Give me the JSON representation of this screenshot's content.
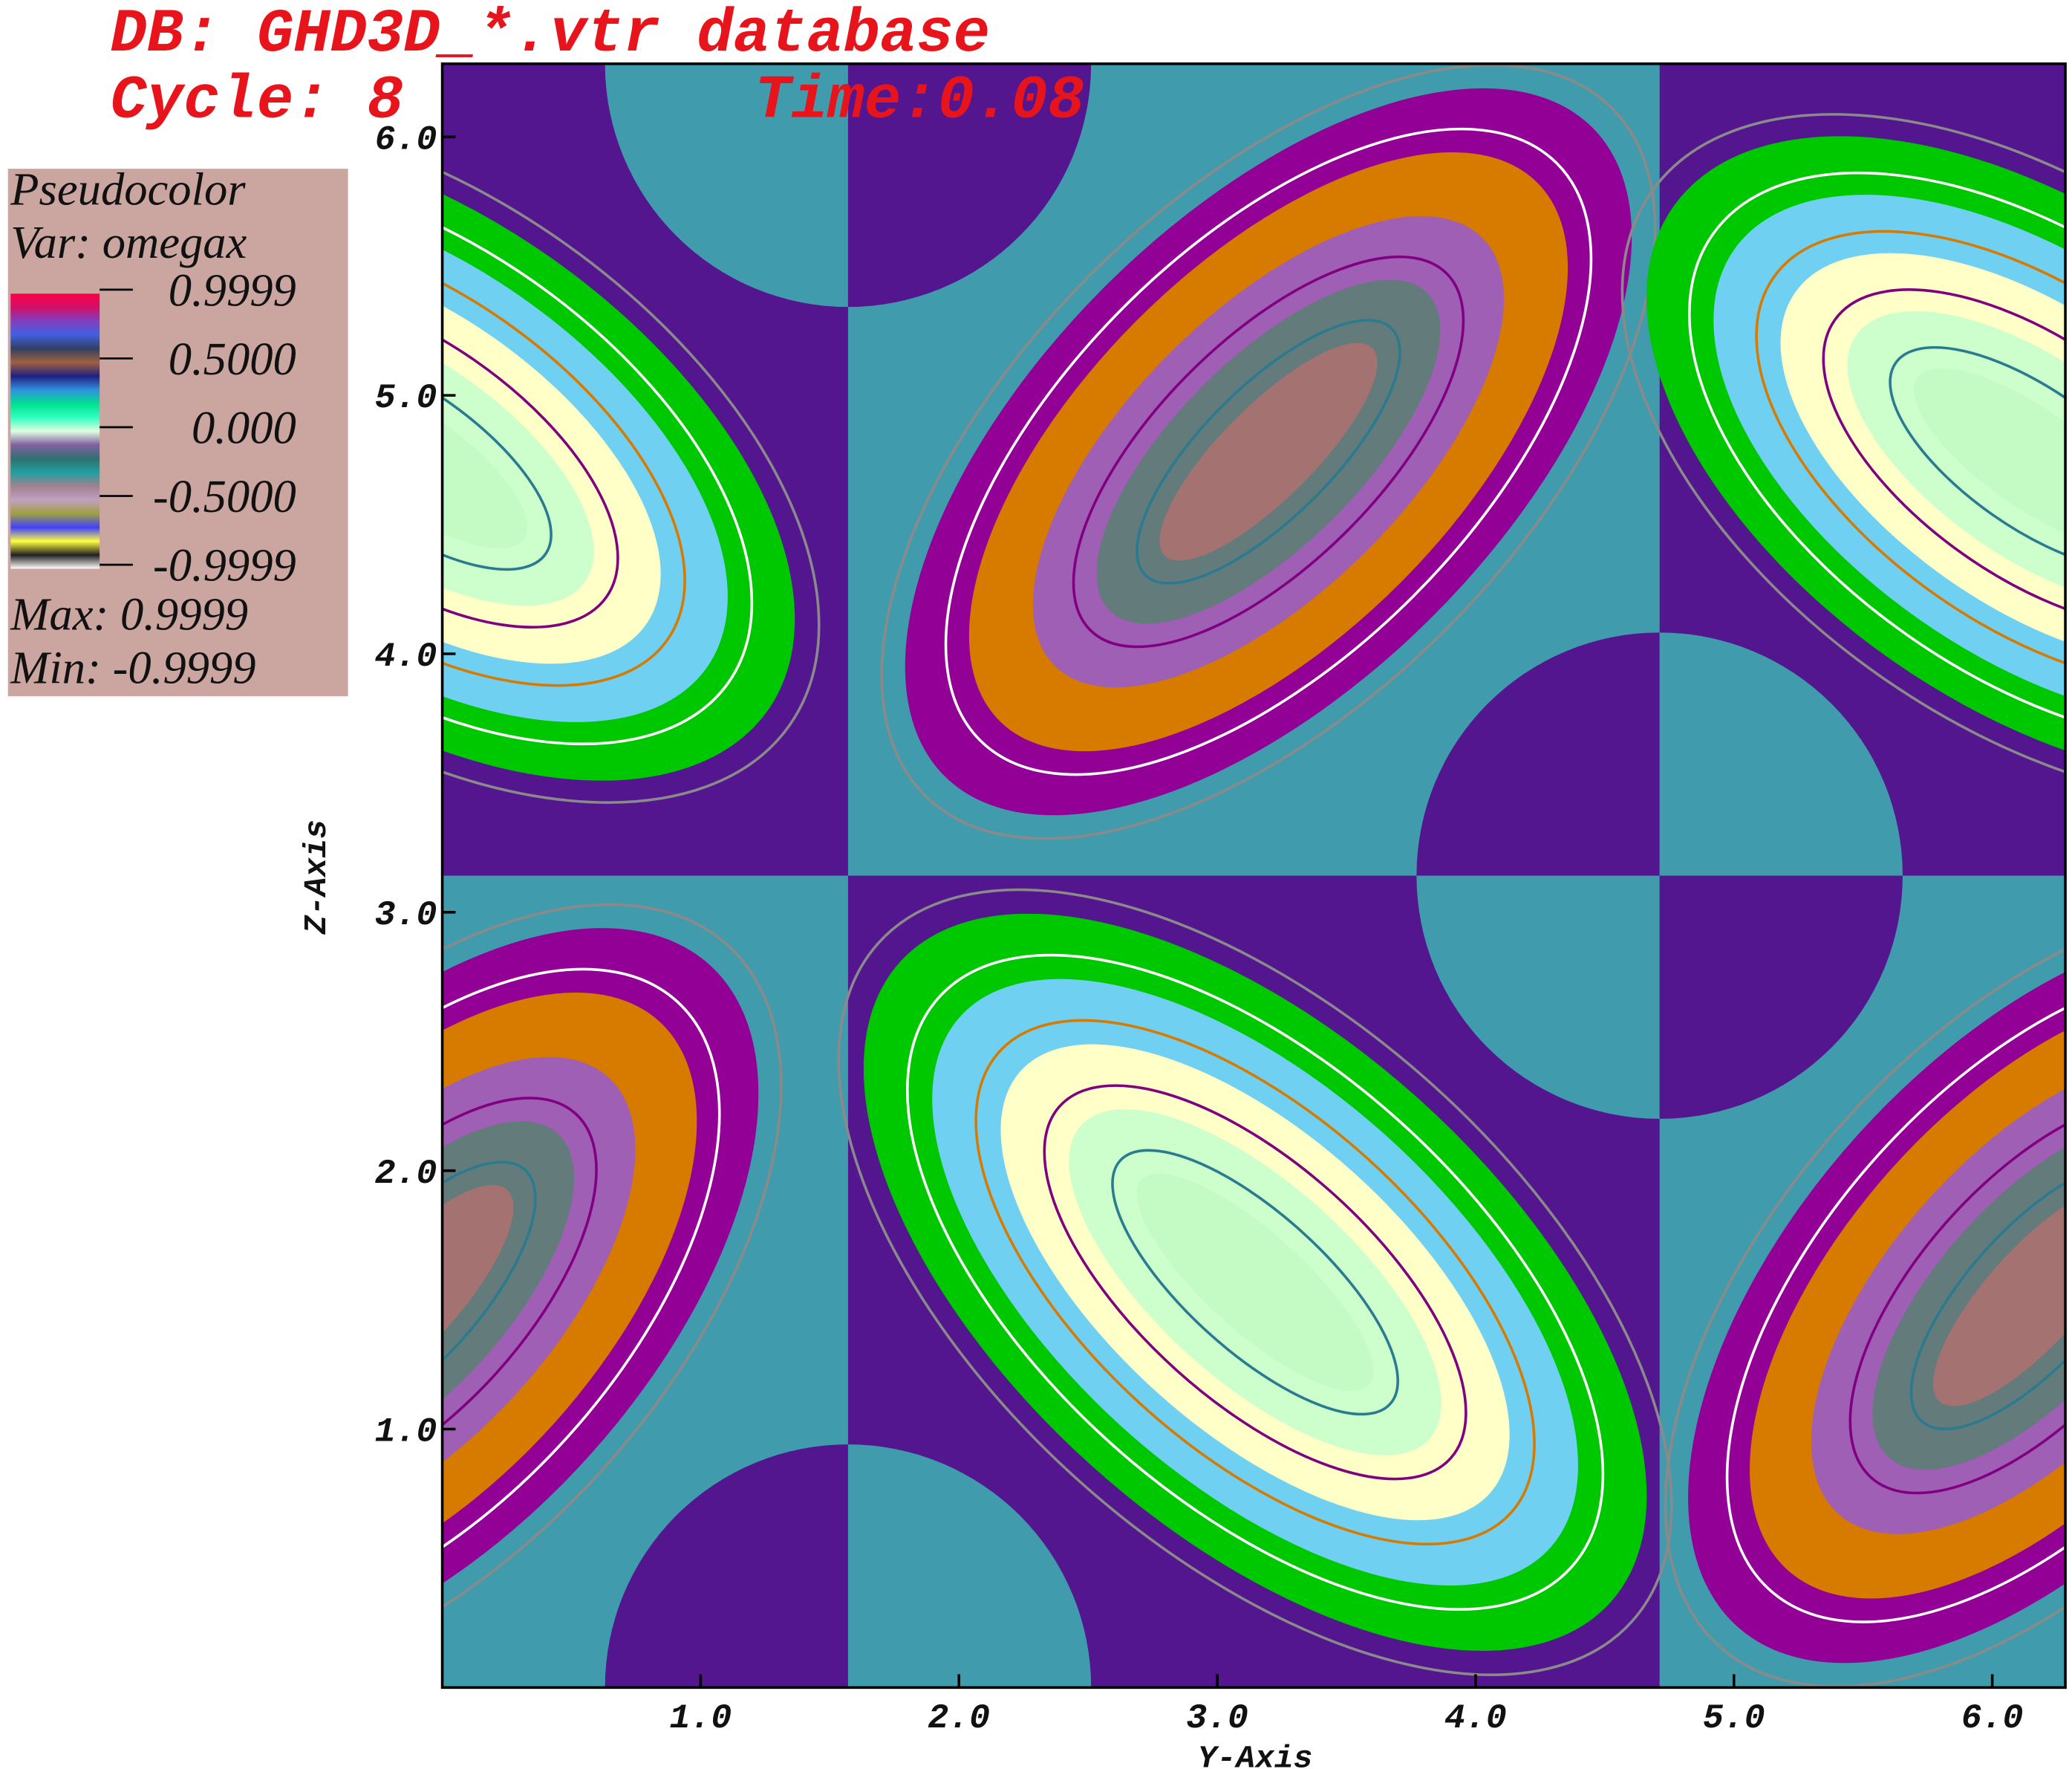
{
  "header": {
    "database": "DB: GHD3D_*.vtr database",
    "cycle": "Cycle: 8",
    "time": "Time:0.08"
  },
  "chart_data": {
    "type": "contour",
    "xlabel": "Y-Axis",
    "ylabel": "Z-Axis",
    "xlim": [
      0,
      6.283
    ],
    "ylim": [
      0,
      6.283
    ],
    "xticks": [
      {
        "value": 1,
        "label": "1.0"
      },
      {
        "value": 2,
        "label": "2.0"
      },
      {
        "value": 3,
        "label": "3.0"
      },
      {
        "value": 4,
        "label": "4.0"
      },
      {
        "value": 5,
        "label": "5.0"
      },
      {
        "value": 6,
        "label": "6.0"
      }
    ],
    "yticks": [
      {
        "value": 1,
        "label": "1.0"
      },
      {
        "value": 2,
        "label": "2.0"
      },
      {
        "value": 3,
        "label": "3.0"
      },
      {
        "value": 4,
        "label": "4.0"
      },
      {
        "value": 5,
        "label": "5.0"
      },
      {
        "value": 6,
        "label": "6.0"
      }
    ],
    "legend": {
      "title": "Pseudocolor",
      "variable": "Var: omegax",
      "clim": [
        -0.9999,
        0.9999
      ],
      "ticks": [
        0.9999,
        {
          "value": 0.5,
          "label": "0.5000"
        },
        {
          "value": 0,
          "label": "0.000"
        },
        {
          "value": -0.5,
          "label": "-0.5000"
        },
        -0.9999
      ],
      "max": "Max:  0.9999",
      "min": "Min: -0.9999"
    }
  }
}
